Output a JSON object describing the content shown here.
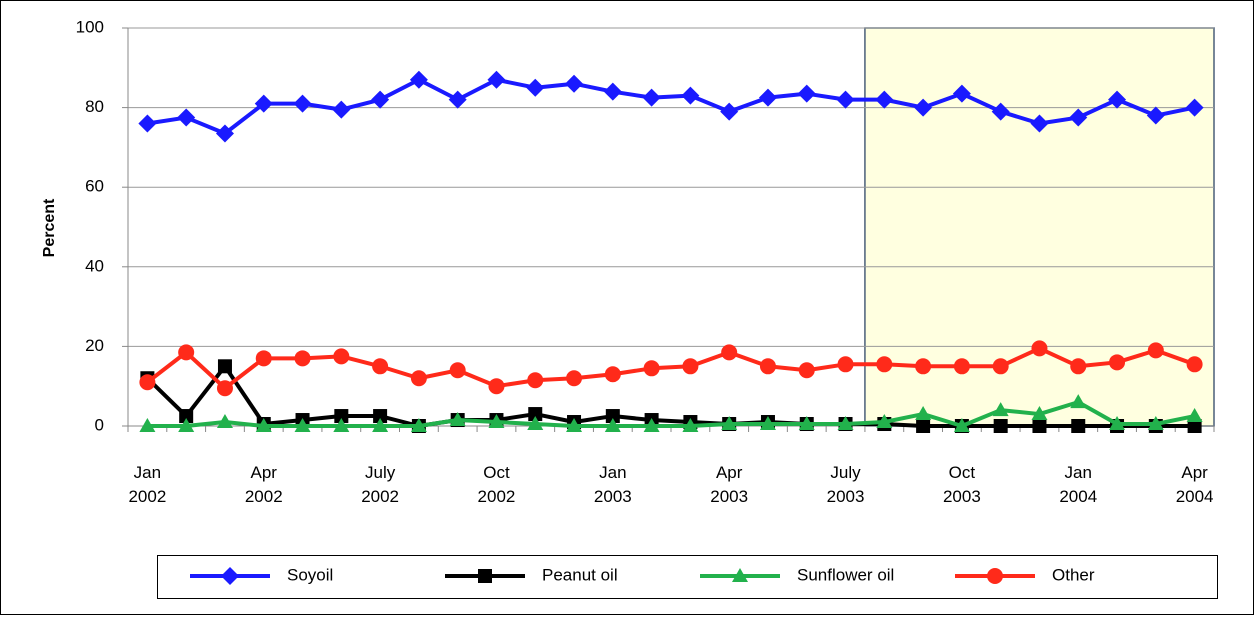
{
  "chart_data": {
    "type": "line",
    "y_label": "Percent",
    "categories": [
      "Jan 2002",
      null,
      null,
      "Apr 2002",
      null,
      null,
      "July 2002",
      null,
      null,
      "Oct 2002",
      null,
      null,
      "Jan 2003",
      null,
      null,
      "Apr 2003",
      null,
      null,
      "July 2003",
      null,
      null,
      "Oct 2003",
      null,
      null,
      "Jan 2004",
      null,
      null,
      "Apr 2004"
    ],
    "series": [
      {
        "name": "Soyoil",
        "color": "#1a1aff",
        "marker": "diamond",
        "values": [
          76,
          77.5,
          73.5,
          81,
          81,
          79.5,
          82,
          87,
          82,
          87,
          85,
          86,
          84,
          82.5,
          83,
          79,
          82.5,
          83.5,
          82,
          82,
          80,
          83.5,
          79,
          76,
          77.5,
          82,
          78,
          80
        ]
      },
      {
        "name": "Peanut oil",
        "color": "#000000",
        "marker": "square",
        "values": [
          12,
          2.5,
          15,
          0.5,
          1.5,
          2.5,
          2.5,
          0,
          1.5,
          1.5,
          3,
          1,
          2.5,
          1.5,
          1,
          0.5,
          1,
          0.5,
          0.5,
          0.5,
          0,
          0,
          0,
          0,
          0,
          0,
          0,
          0
        ]
      },
      {
        "name": "Sunflower oil",
        "color": "#22b14c",
        "marker": "triangle",
        "values": [
          0,
          0,
          1,
          0,
          0,
          0,
          0,
          0,
          1.5,
          1,
          0.5,
          0,
          0,
          0,
          0,
          0.5,
          0.5,
          0.5,
          0.5,
          1,
          3,
          0,
          4,
          3,
          6,
          0.5,
          0.5,
          2.5
        ]
      },
      {
        "name": "Other",
        "color": "#ff2a1a",
        "marker": "circle",
        "values": [
          11,
          18.5,
          9.5,
          17,
          17,
          17.5,
          15,
          12,
          14,
          10,
          11.5,
          12,
          13,
          14.5,
          15,
          18.5,
          15,
          14,
          15.5,
          15.5,
          15,
          15,
          15,
          19.5,
          15,
          16,
          19,
          15.5
        ]
      }
    ],
    "ylim": [
      0,
      100
    ],
    "yticks": [
      0,
      20,
      40,
      60,
      80,
      100
    ],
    "grid": true
  }
}
